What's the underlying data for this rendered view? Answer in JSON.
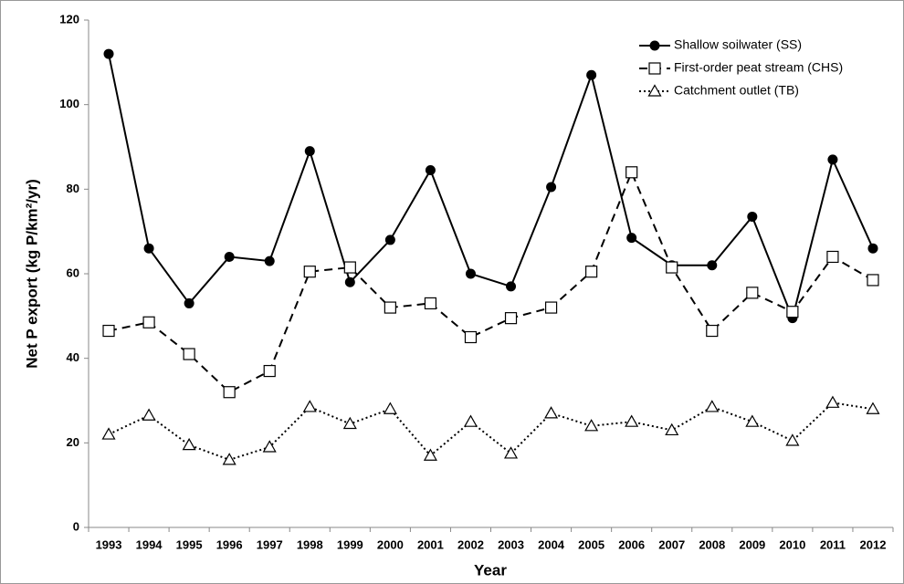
{
  "chart_data": {
    "type": "line",
    "x_label": "Year",
    "y_label": "Net P export (kg P/km²/yr)",
    "categories": [
      "1993",
      "1994",
      "1995",
      "1996",
      "1997",
      "1998",
      "1999",
      "2000",
      "2001",
      "2002",
      "2003",
      "2004",
      "2005",
      "2006",
      "2007",
      "2008",
      "2009",
      "2010",
      "2011",
      "2012"
    ],
    "series": [
      {
        "name": "Shallow soilwater (SS)",
        "color": "#000000",
        "dash": "solid",
        "marker": "circle",
        "values": [
          112,
          66,
          53,
          64,
          63,
          89,
          58,
          68,
          84.5,
          60,
          57,
          80.5,
          107,
          68.5,
          62,
          62,
          73.5,
          49.5,
          87,
          66
        ]
      },
      {
        "name": "First-order peat stream (CHS)",
        "color": "#000000",
        "dash": "dashed",
        "marker": "square",
        "values": [
          46.5,
          48.5,
          41,
          32,
          37,
          60.5,
          61.5,
          52,
          53,
          45,
          49.5,
          52,
          60.5,
          84,
          61.5,
          46.5,
          55.5,
          51,
          64,
          58.5
        ]
      },
      {
        "name": "Catchment outlet (TB)",
        "color": "#000000",
        "dash": "dotted",
        "marker": "triangle",
        "values": [
          22,
          26.5,
          19.5,
          16,
          19,
          28.5,
          24.5,
          28,
          17,
          25,
          17.5,
          27,
          24,
          25,
          23,
          28.5,
          25,
          20.5,
          29.5,
          28
        ]
      }
    ],
    "ylim": [
      0,
      120
    ],
    "yticks": [
      0,
      20,
      40,
      60,
      80,
      100,
      120
    ],
    "grid": false,
    "legend": "upper-right"
  }
}
